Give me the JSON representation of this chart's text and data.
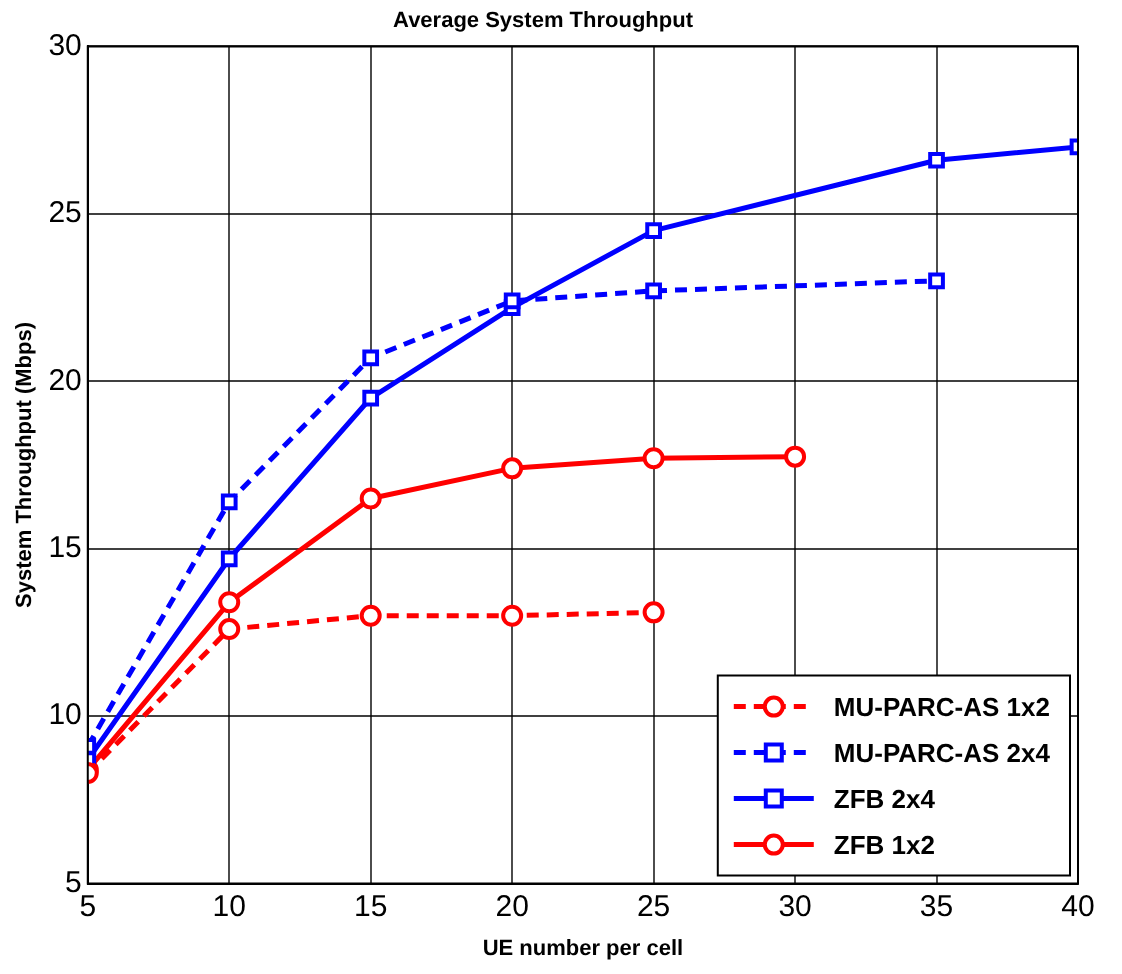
{
  "chart_data": {
    "type": "line",
    "title": "Average System Throughput",
    "xlabel": "UE number per cell",
    "ylabel": "System Throughput (Mbps)",
    "xlim": [
      5,
      40
    ],
    "xticks": [
      5,
      10,
      15,
      20,
      25,
      30,
      35,
      40
    ],
    "ylim": [
      5,
      30
    ],
    "yticks": [
      5,
      10,
      15,
      20,
      25,
      30
    ],
    "grid": true,
    "legend": "bottom right",
    "series": [
      {
        "name": "MU-PARC-AS 1x2",
        "color": "#ff0000",
        "marker": "circle",
        "line_style": "dashed",
        "x": [
          5,
          10,
          15,
          20,
          25
        ],
        "values": [
          8.3,
          12.6,
          13.0,
          13.0,
          13.1
        ]
      },
      {
        "name": "MU-PARC-AS 2x4",
        "color": "#0000ff",
        "marker": "square",
        "line_style": "dashed",
        "x": [
          5,
          10,
          15,
          20,
          25,
          35
        ],
        "values": [
          9.1,
          16.4,
          20.7,
          22.4,
          22.7,
          23.0
        ]
      },
      {
        "name": "ZFB 2x4",
        "color": "#0000ff",
        "marker": "square",
        "line_style": "solid",
        "x": [
          5,
          10,
          15,
          20,
          25,
          35,
          40
        ],
        "values": [
          8.7,
          14.7,
          19.5,
          22.2,
          24.5,
          26.6,
          27.0
        ]
      },
      {
        "name": "ZFB 1x2",
        "color": "#ff0000",
        "marker": "circle",
        "line_style": "solid",
        "x": [
          5,
          10,
          15,
          20,
          25,
          30
        ],
        "values": [
          8.4,
          13.4,
          16.5,
          17.4,
          17.7,
          17.75
        ]
      }
    ]
  }
}
